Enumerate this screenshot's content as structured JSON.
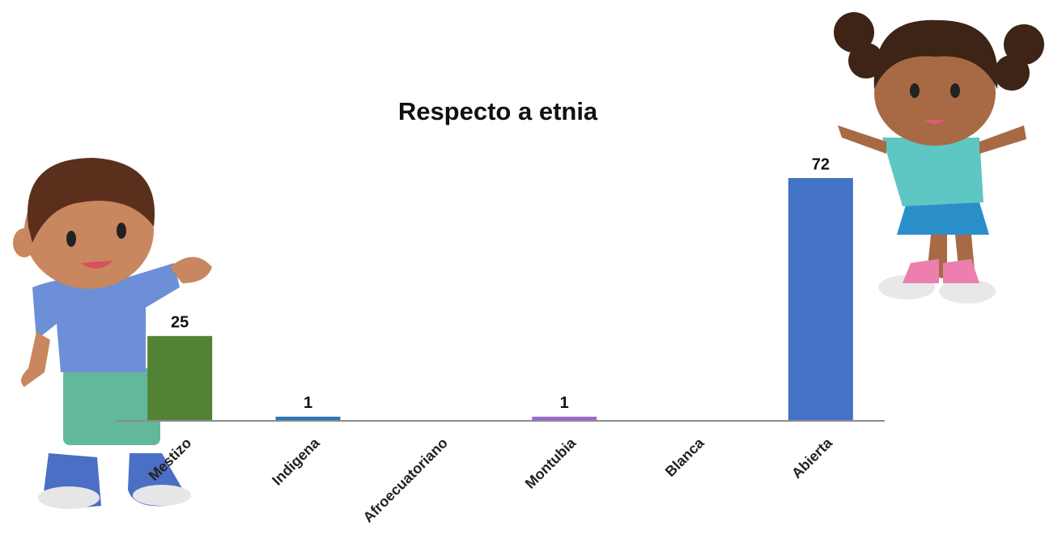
{
  "chart_data": {
    "type": "bar",
    "title": "Respecto a etnia",
    "categories": [
      "Mestizo",
      "Indigena",
      "Afroecuatoriano",
      "Montubia",
      "Blanca",
      "Abierta"
    ],
    "values": [
      25,
      1,
      0,
      1,
      0,
      72
    ],
    "value_labels": [
      "25",
      "1",
      null,
      "1",
      null,
      "72"
    ],
    "colors": [
      "#548235",
      "#2e75b6",
      null,
      "#9b6bd0",
      null,
      "#4472c4"
    ]
  }
}
